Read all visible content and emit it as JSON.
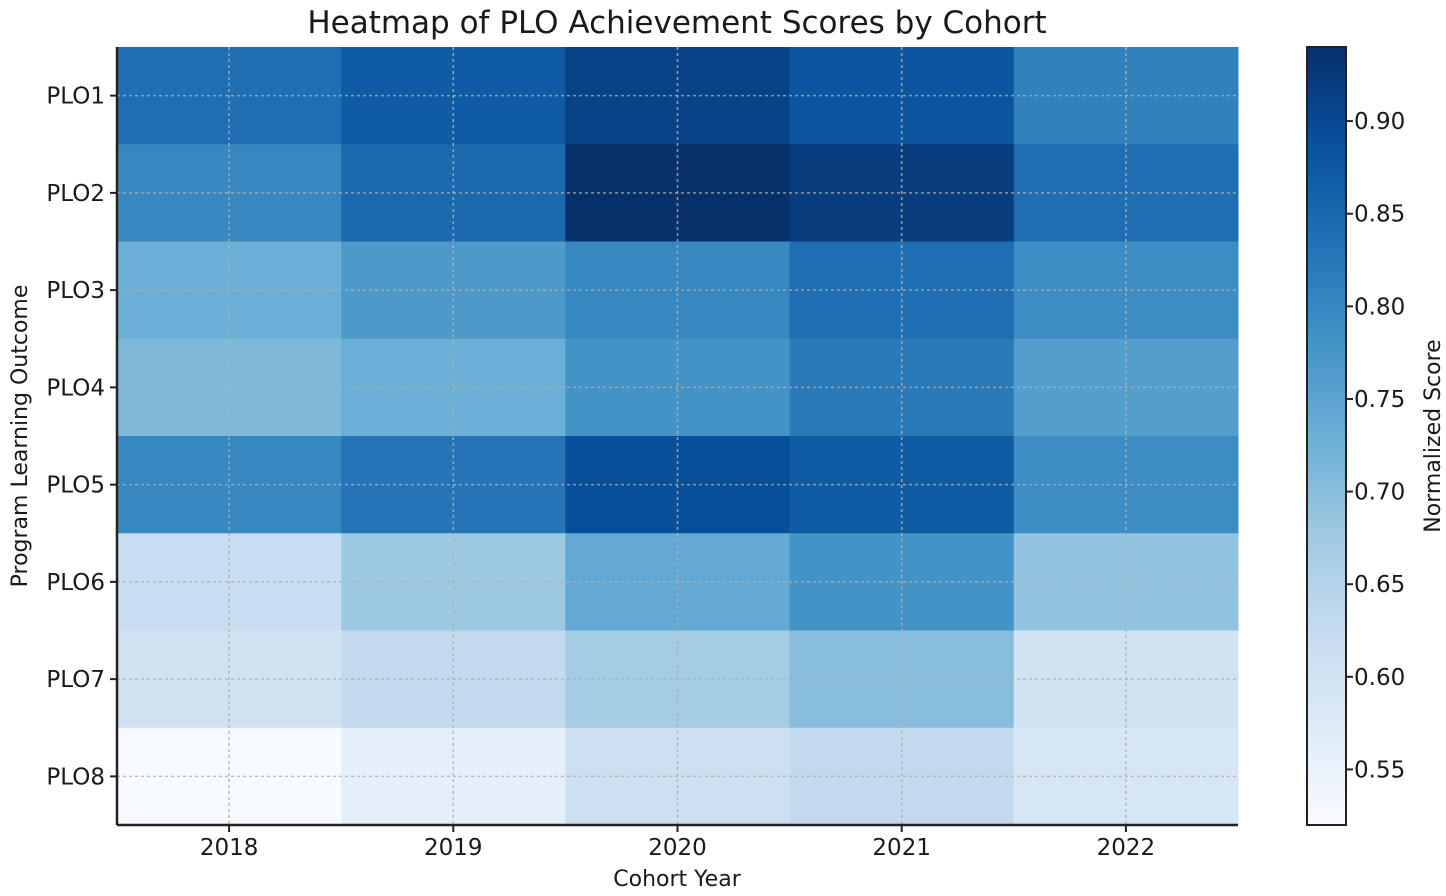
{
  "chart_data": {
    "type": "heatmap",
    "title": "Heatmap of PLO Achievement Scores by Cohort",
    "xlabel": "Cohort Year",
    "ylabel": "Program Learning Outcome",
    "x_categories": [
      "2018",
      "2019",
      "2020",
      "2021",
      "2022"
    ],
    "y_categories": [
      "PLO1",
      "PLO2",
      "PLO3",
      "PLO4",
      "PLO5",
      "PLO6",
      "PLO7",
      "PLO8"
    ],
    "values": [
      [
        0.84,
        0.87,
        0.91,
        0.88,
        0.81
      ],
      [
        0.8,
        0.85,
        0.94,
        0.92,
        0.84
      ],
      [
        0.73,
        0.77,
        0.8,
        0.84,
        0.79
      ],
      [
        0.71,
        0.73,
        0.78,
        0.82,
        0.76
      ],
      [
        0.8,
        0.83,
        0.89,
        0.87,
        0.79
      ],
      [
        0.62,
        0.68,
        0.74,
        0.78,
        0.69
      ],
      [
        0.6,
        0.63,
        0.67,
        0.7,
        0.6
      ],
      [
        0.52,
        0.56,
        0.61,
        0.63,
        0.59
      ]
    ],
    "colorbar": {
      "label": "Normalized Score",
      "range": [
        0.52,
        0.94
      ],
      "ticks": [
        "0.55",
        "0.60",
        "0.65",
        "0.70",
        "0.75",
        "0.80",
        "0.85",
        "0.90"
      ],
      "colormap": "Blues",
      "colors": [
        "#f7fbff",
        "#deebf7",
        "#c6dbef",
        "#9ecae1",
        "#6baed6",
        "#4292c6",
        "#2171b5",
        "#08519c",
        "#08306b"
      ]
    },
    "grid": true
  }
}
